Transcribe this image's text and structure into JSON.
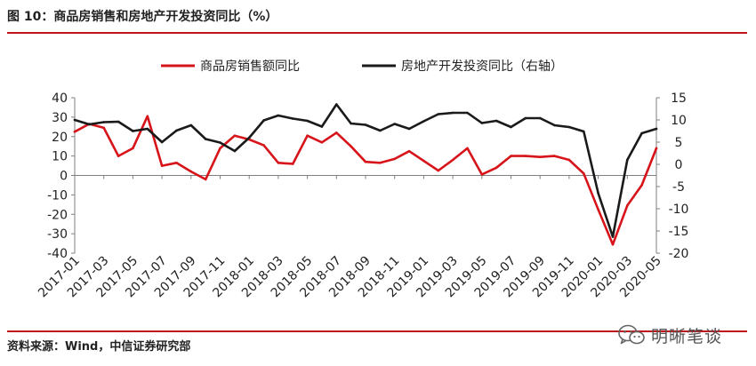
{
  "figure": {
    "title": "图 10：商品房销售和房地产开发投资同比（%）",
    "source": "资料来源：Wind，中信证券研究部",
    "watermark": "明晰笔谈",
    "watermark_icon": "wechat-icon"
  },
  "colors": {
    "rule": "#c0141b",
    "sales_line": "#d7141a",
    "investment_line": "#1a1a1a",
    "axis": "#7f7f7f"
  },
  "chart_data": {
    "type": "line",
    "legend_position": "top-center",
    "grid": false,
    "x_tick_labels": [
      "2017-01",
      "2017-03",
      "2017-05",
      "2017-07",
      "2017-09",
      "2017-11",
      "2018-01",
      "2018-03",
      "2018-05",
      "2018-07",
      "2018-09",
      "2018-11",
      "2019-01",
      "2019-03",
      "2019-05",
      "2019-07",
      "2019-09",
      "2019-11",
      "2020-01",
      "2020-03",
      "2020-05"
    ],
    "y_left": {
      "range": [
        -40,
        40
      ],
      "ticks": [
        40,
        30,
        20,
        10,
        0,
        -10,
        -20,
        -30,
        -40
      ]
    },
    "y_right": {
      "range": [
        -20,
        15
      ],
      "ticks": [
        15,
        10,
        5,
        0,
        -5,
        -10,
        -15,
        -20
      ]
    },
    "x": [
      "2017-01",
      "2017-02",
      "2017-03",
      "2017-04",
      "2017-05",
      "2017-06",
      "2017-07",
      "2017-08",
      "2017-09",
      "2017-10",
      "2017-11",
      "2017-12",
      "2018-01",
      "2018-02",
      "2018-03",
      "2018-04",
      "2018-05",
      "2018-06",
      "2018-07",
      "2018-08",
      "2018-09",
      "2018-10",
      "2018-11",
      "2018-12",
      "2019-01",
      "2019-02",
      "2019-03",
      "2019-04",
      "2019-05",
      "2019-06",
      "2019-07",
      "2019-08",
      "2019-09",
      "2019-10",
      "2019-11",
      "2019-12",
      "2020-01",
      "2020-02",
      "2020-03",
      "2020-04",
      "2020-05"
    ],
    "series": [
      {
        "name": "商品房销售额同比",
        "axis": "left",
        "color": "#d7141a",
        "values": [
          22.5,
          26.5,
          24.5,
          10,
          14,
          30.5,
          5,
          6.5,
          2,
          -2,
          14,
          20.5,
          18.5,
          15.5,
          6.5,
          6,
          20.5,
          17,
          22,
          15,
          7,
          6.5,
          8.5,
          12.5,
          7.5,
          2.5,
          8,
          14,
          0.5,
          4,
          10,
          10,
          9.5,
          10,
          8,
          1,
          -17.5,
          -35.5,
          -15.5,
          -5,
          14
        ]
      },
      {
        "name": "房地产开发投资同比（右轴）",
        "axis": "right",
        "color": "#1a1a1a",
        "values": [
          10,
          9,
          9.5,
          9.6,
          7.5,
          8,
          5,
          7.6,
          8.8,
          5.7,
          4.9,
          3,
          6,
          9.9,
          11,
          10.3,
          9.8,
          8.5,
          13.5,
          9.2,
          8.9,
          7.6,
          9.1,
          8,
          9.7,
          11.3,
          11.6,
          11.6,
          9.3,
          9.8,
          8.4,
          10.4,
          10.4,
          8.8,
          8.4,
          7.4,
          -6.5,
          -16.3,
          1,
          7,
          8
        ]
      }
    ]
  }
}
